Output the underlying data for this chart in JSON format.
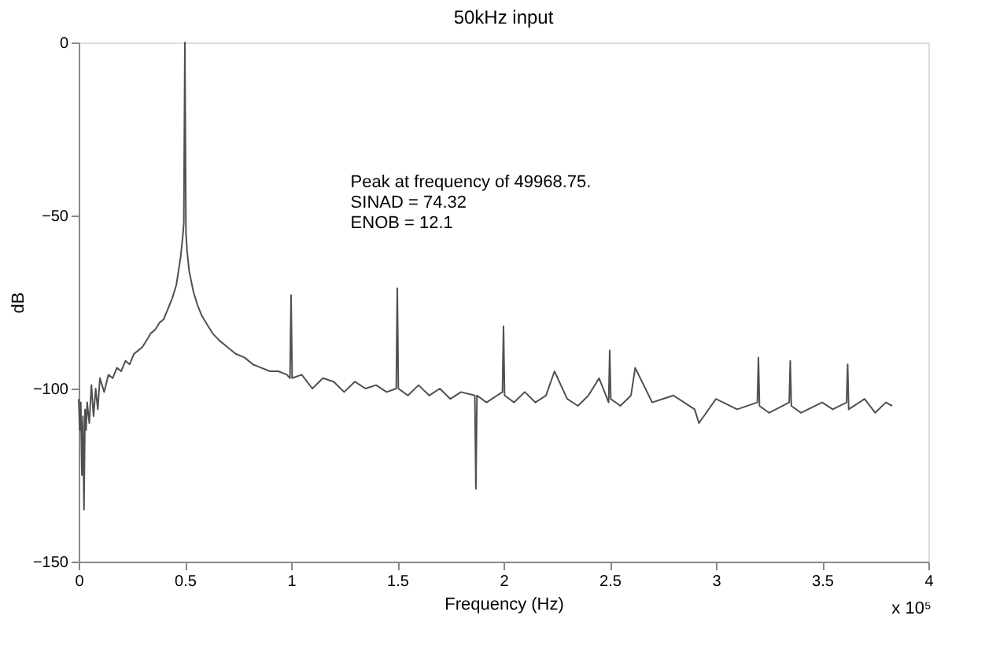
{
  "chart_data": {
    "type": "line",
    "title": "50kHz input",
    "xlabel": "Frequency (Hz)",
    "ylabel": "dB",
    "annotations": [
      "Peak at frequency of 49968.75.",
      "SINAD = 74.32",
      "ENOB = 12.1",
      "x 10⁵"
    ],
    "xlim": [
      0,
      4
    ],
    "xticks": [
      0,
      0.5,
      1,
      1.5,
      2,
      2.5,
      3,
      3.5,
      4
    ],
    "ylim": [
      -150,
      0
    ],
    "yticks": [
      -150,
      -100,
      -50,
      0
    ],
    "grid": false,
    "marker": "none",
    "line_style": "solid",
    "series": [
      {
        "color": "#505050",
        "x": [
          0,
          0.005,
          0.01,
          0.015,
          0.02,
          0.025,
          0.03,
          0.035,
          0.04,
          0.05,
          0.06,
          0.07,
          0.08,
          0.09,
          0.1,
          0.12,
          0.14,
          0.16,
          0.18,
          0.2,
          0.22,
          0.24,
          0.26,
          0.28,
          0.3,
          0.32,
          0.34,
          0.36,
          0.38,
          0.4,
          0.42,
          0.44,
          0.46,
          0.48,
          0.49,
          0.495,
          0.5,
          0.505,
          0.51,
          0.52,
          0.54,
          0.56,
          0.58,
          0.6,
          0.63,
          0.66,
          0.7,
          0.74,
          0.78,
          0.82,
          0.86,
          0.9,
          0.94,
          0.98,
          0.995,
          1.0,
          1.005,
          1.05,
          1.1,
          1.15,
          1.2,
          1.25,
          1.3,
          1.35,
          1.4,
          1.45,
          1.495,
          1.5,
          1.505,
          1.55,
          1.6,
          1.65,
          1.7,
          1.75,
          1.8,
          1.865,
          1.87,
          1.875,
          1.92,
          1.995,
          2.0,
          2.005,
          2.05,
          2.1,
          2.15,
          2.2,
          2.24,
          2.3,
          2.35,
          2.4,
          2.45,
          2.495,
          2.5,
          2.505,
          2.55,
          2.6,
          2.62,
          2.7,
          2.8,
          2.9,
          2.92,
          3.0,
          3.1,
          3.195,
          3.2,
          3.205,
          3.25,
          3.345,
          3.35,
          3.355,
          3.4,
          3.5,
          3.55,
          3.615,
          3.62,
          3.625,
          3.7,
          3.75,
          3.8,
          3.83
        ],
        "values": [
          -103,
          -112,
          -104,
          -125,
          -108,
          -135,
          -106,
          -112,
          -104,
          -110,
          -99,
          -108,
          -100,
          -106,
          -97,
          -101,
          -96,
          -97,
          -94,
          -95,
          -92,
          -93,
          -90,
          -89,
          -88,
          -86,
          -84,
          -83,
          -81,
          -80,
          -77,
          -74,
          -70,
          -62,
          -56,
          -52,
          0,
          -55,
          -60,
          -66,
          -72,
          -76,
          -79,
          -81,
          -84,
          -86,
          -88,
          -90,
          -91,
          -93,
          -94,
          -95,
          -95,
          -96,
          -97,
          -73,
          -97,
          -96,
          -100,
          -97,
          -98,
          -101,
          -98,
          -100,
          -99,
          -101,
          -100,
          -71,
          -100,
          -102,
          -99,
          -102,
          -100,
          -103,
          -101,
          -102,
          -129,
          -102,
          -104,
          -101,
          -82,
          -102,
          -104,
          -101,
          -104,
          -102,
          -95,
          -103,
          -105,
          -102,
          -97,
          -104,
          -89,
          -103,
          -105,
          -102,
          -94,
          -104,
          -102,
          -106,
          -110,
          -103,
          -106,
          -104,
          -91,
          -105,
          -107,
          -104,
          -92,
          -105,
          -107,
          -104,
          -106,
          -104,
          -93,
          -106,
          -103,
          -107,
          -104,
          -105
        ]
      }
    ]
  }
}
